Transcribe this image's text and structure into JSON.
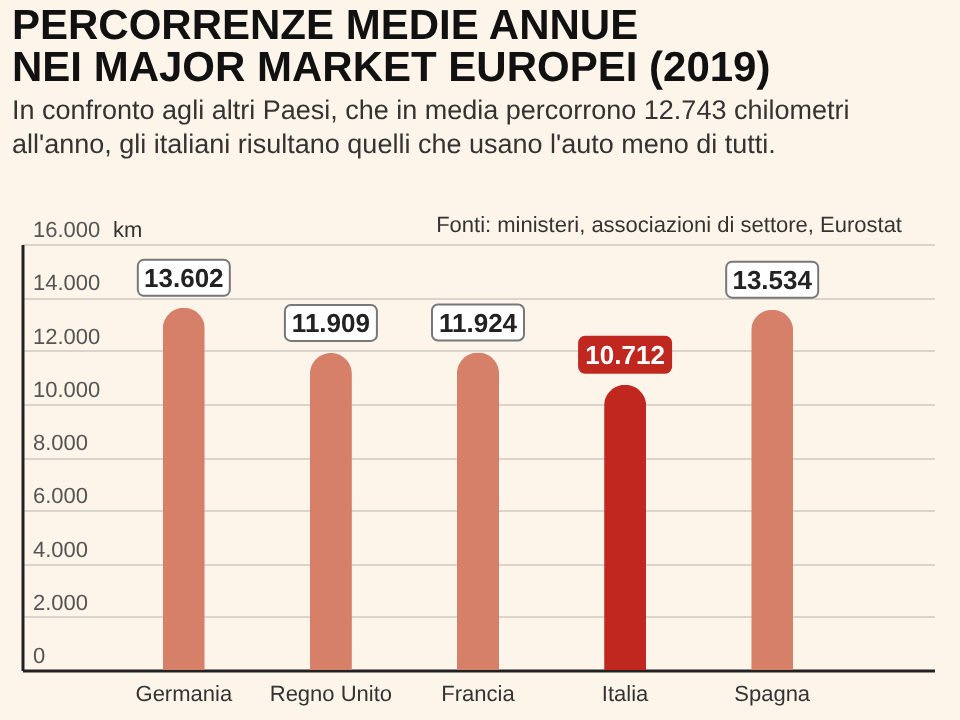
{
  "chart_data": {
    "type": "bar",
    "title": "PERCORRENZE MEDIE ANNUE\nNEI MAJOR MARKET EUROPEI (2019)",
    "subtitle": "In confronto agli altri Paesi, che in media percorrono 12.743 chilometri\nall'anno, gli italiani risultano quelli che usano l'auto meno di tutti.",
    "ylabel": "km",
    "annotations": [
      "Fonti: ministeri, associazioni di settore, Eurostat"
    ],
    "categories": [
      "Germania",
      "Regno Unito",
      "Francia",
      "Italia",
      "Spagna"
    ],
    "values": [
      13602,
      11909,
      11924,
      10712,
      13534
    ],
    "value_labels": [
      "13.602",
      "11.909",
      "11.924",
      "10.712",
      "13.534"
    ],
    "colors": [
      "#d6806a",
      "#d6806a",
      "#d6806a",
      "#c0281f",
      "#d6806a"
    ],
    "ylim": [
      0,
      16000
    ],
    "yticks": [
      {
        "value": 0,
        "label": "0"
      },
      {
        "value": 2000,
        "label": "2.000"
      },
      {
        "value": 4000,
        "label": "4.000"
      },
      {
        "value": 6000,
        "label": "6.000"
      },
      {
        "value": 8000,
        "label": "8.000"
      },
      {
        "value": 10000,
        "label": "10.000"
      },
      {
        "value": 12000,
        "label": "12.000"
      },
      {
        "value": 14000,
        "label": "14.000"
      },
      {
        "value": 16000,
        "label": "16.000"
      }
    ],
    "grid": "y"
  }
}
